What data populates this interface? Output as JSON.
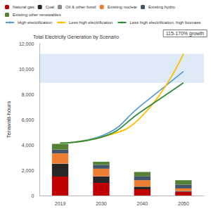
{
  "chart_data": {
    "type": "bar",
    "title": "Total Electricity Generation by Scenario",
    "y_label": "Terawatt-hours",
    "annotation": "115-170% growth",
    "shaded_range": [
      8900,
      11200
    ],
    "categories": [
      "2019",
      "2030",
      "2040",
      "2050"
    ],
    "stacked": true,
    "grid": false,
    "ylim": [
      0,
      12000
    ],
    "yticks": [
      0,
      {
        "value": 2000,
        "label": "2,000"
      },
      {
        "value": 4000,
        "label": "4,000"
      },
      {
        "value": 6000,
        "label": "6,000"
      },
      {
        "value": 8000,
        "label": "8,000"
      },
      {
        "value": 10000,
        "label": "10,000"
      },
      {
        "value": 12000,
        "label": "12,000"
      }
    ],
    "series": [
      {
        "name": "Natural gas",
        "type": "bar",
        "color": "#c00000",
        "values": [
          1500,
          1000,
          500,
          300
        ]
      },
      {
        "name": "Coal",
        "type": "bar",
        "color": "#262626",
        "values": [
          1000,
          500,
          200,
          50
        ]
      },
      {
        "name": "Oil & other fossil",
        "type": "bar",
        "color": "#8c8c8c",
        "values": [
          30,
          20,
          10,
          10
        ]
      },
      {
        "name": "Existing nuclear",
        "type": "bar",
        "color": "#ed7d31",
        "values": [
          800,
          600,
          500,
          200
        ]
      },
      {
        "name": "Existing hydro",
        "type": "bar",
        "color": "#44546a",
        "values": [
          300,
          300,
          300,
          300
        ]
      },
      {
        "name": "Existing other renewables",
        "type": "bar",
        "color": "#548235",
        "values": [
          450,
          250,
          350,
          350
        ]
      },
      {
        "name": "High electrification",
        "type": "line",
        "color": "#5b9bd5",
        "values": [
          4150,
          4700,
          7200,
          9800
        ]
      },
      {
        "name": "Less high electrification",
        "type": "line",
        "color": "#ffc000",
        "values": [
          4150,
          4600,
          6300,
          11200
        ]
      },
      {
        "name": "Less high electrification, high biomass",
        "type": "line",
        "color": "#2e8b3a",
        "values": [
          4150,
          4600,
          6700,
          8900
        ]
      }
    ]
  }
}
